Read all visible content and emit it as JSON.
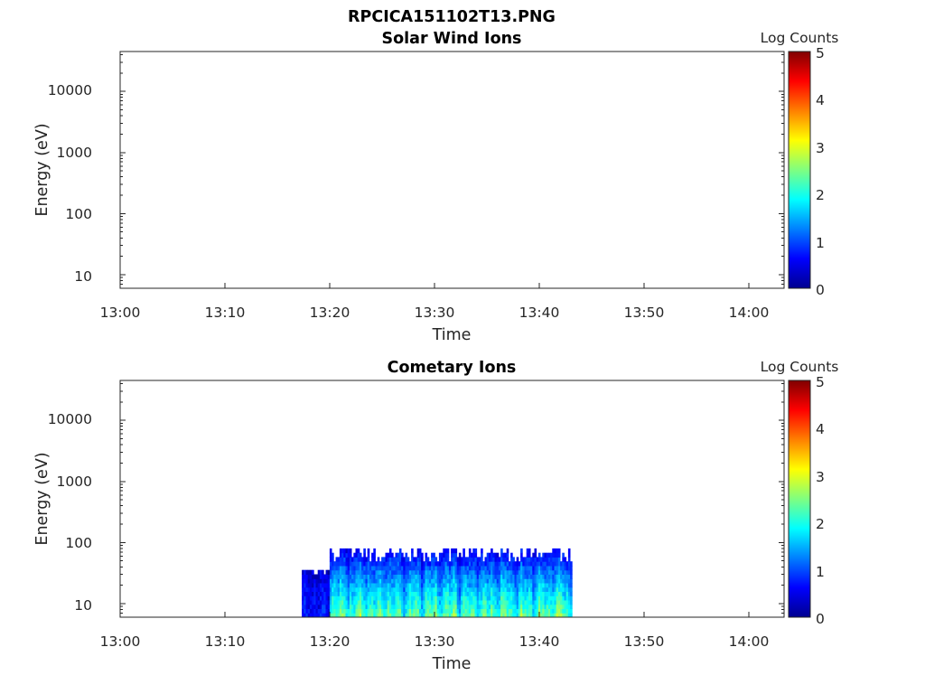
{
  "figure": {
    "title": "RPCICA151102T13.PNG"
  },
  "chart_data": [
    {
      "type": "heatmap",
      "title": "Solar Wind Ions",
      "xlabel": "Time",
      "ylabel": "Energy (eV)",
      "x_ticks": [
        "13:00",
        "13:10",
        "13:20",
        "13:30",
        "13:40",
        "13:50",
        "14:00"
      ],
      "x_range_minutes": [
        0,
        63.5
      ],
      "y_scale": "log",
      "y_ticks": [
        "10",
        "100",
        "1000",
        "10000"
      ],
      "y_range": [
        6,
        45000
      ],
      "colorbar": {
        "label": "Log Counts",
        "ticks": [
          "0",
          "1",
          "2",
          "3",
          "4",
          "5"
        ],
        "range": [
          0,
          5
        ],
        "colormap": "jet"
      },
      "data": []
    },
    {
      "type": "heatmap",
      "title": "Cometary Ions",
      "xlabel": "Time",
      "ylabel": "Energy (eV)",
      "x_ticks": [
        "13:00",
        "13:10",
        "13:20",
        "13:30",
        "13:40",
        "13:50",
        "14:00"
      ],
      "x_range_minutes": [
        0,
        63.5
      ],
      "y_scale": "log",
      "y_ticks": [
        "10",
        "100",
        "1000",
        "10000"
      ],
      "y_range": [
        6,
        45000
      ],
      "colorbar": {
        "label": "Log Counts",
        "ticks": [
          "0",
          "1",
          "2",
          "3",
          "4",
          "5"
        ],
        "range": [
          0,
          5
        ],
        "colormap": "jet"
      },
      "data_extent": {
        "time_start": "13:17:20",
        "time_end": "13:43:00",
        "energy_min_eV": 6,
        "energy_max_eV": 80
      },
      "typical_log_counts": {
        "low_energy": 2.5,
        "mid_energy": 1.8,
        "high_energy": 0.7
      }
    }
  ]
}
